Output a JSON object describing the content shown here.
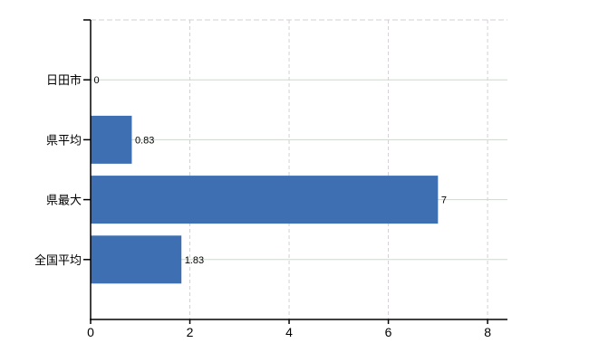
{
  "chart_data": {
    "type": "bar",
    "orientation": "horizontal",
    "title": "",
    "categories": [
      "日田市",
      "県平均",
      "県最大",
      "全国平均"
    ],
    "values": [
      0,
      0.83,
      7,
      1.83
    ],
    "value_labels": [
      "0",
      "0.83",
      "7",
      "1.83"
    ],
    "x_ticks": [
      0,
      2,
      4,
      6,
      8
    ],
    "x_tick_labels": [
      "0",
      "2",
      "4",
      "6",
      "8"
    ],
    "xlim": [
      0,
      8.4
    ],
    "grid": true,
    "legend": false,
    "colors": {
      "bar": "#3e6fb2",
      "grid_horizontal": "#cfd7cf",
      "grid_vertical": "#d5cfd5",
      "top_border": "#d5cfd5",
      "axis": "#000000",
      "text": "#000000",
      "background": "#ffffff"
    }
  }
}
